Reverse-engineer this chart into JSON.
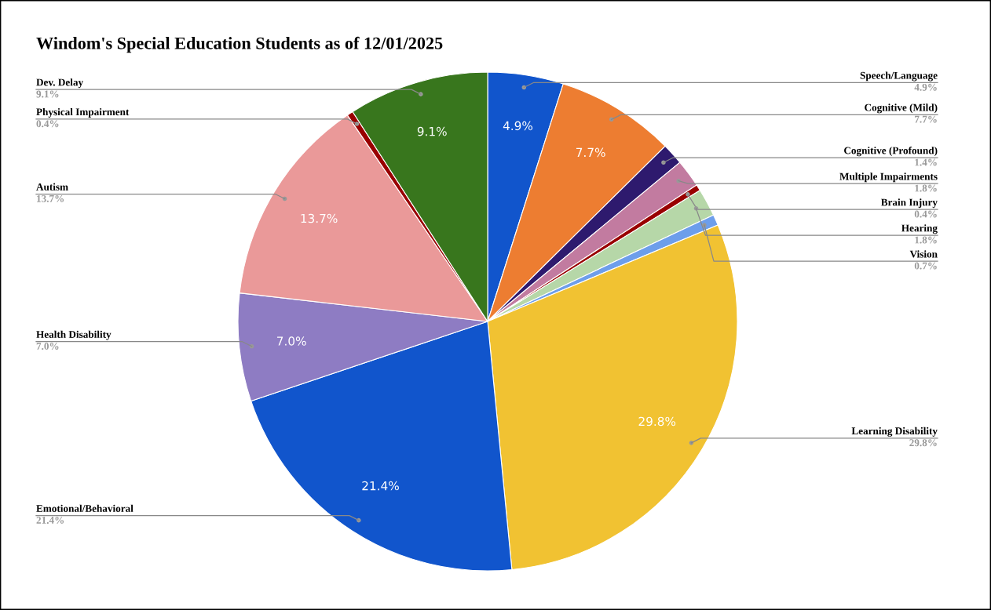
{
  "chart_data": {
    "type": "pie",
    "title": "Windom's Special Education Students as of 12/01/2025",
    "categories": [
      "Speech/Language",
      "Cognitive (Mild)",
      "Cognitive (Profound)",
      "Multiple Impairments",
      "Brain Injury",
      "Hearing",
      "Vision",
      "Learning Disability",
      "Emotional/Behavioral",
      "Health Disability",
      "Autism",
      "Physical Impairment",
      "Dev. Delay"
    ],
    "values": [
      4.9,
      7.7,
      1.4,
      1.8,
      0.4,
      1.8,
      0.7,
      29.8,
      21.4,
      7.0,
      13.7,
      0.4,
      9.1
    ],
    "colors": [
      "#1155cc",
      "#ed7d31",
      "#2e1a6e",
      "#c27ba0",
      "#990000",
      "#b6d7a8",
      "#6d9eeb",
      "#f1c232",
      "#1155cc",
      "#8e7cc3",
      "#ea9999",
      "#990000",
      "#38761d"
    ],
    "value_labels": [
      "4.9%",
      "7.7%",
      "1.4%",
      "1.8%",
      "0.4%",
      "1.8%",
      "0.7%",
      "29.8%",
      "21.4%",
      "7.0%",
      "13.7%",
      "0.4%",
      "9.1%"
    ]
  }
}
